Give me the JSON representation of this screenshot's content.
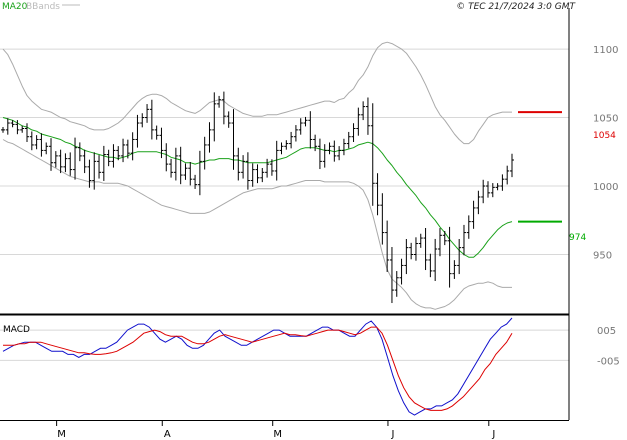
{
  "header": {
    "ma_label": "MA20",
    "bbands_label": "BBands",
    "source": "© TEC 21/7/2024 3:0 GMT"
  },
  "macd_label": "MACD",
  "colors": {
    "ma": "#1aa11a",
    "bands": "#aaaaaa",
    "price": "#000000",
    "resistance": "#dd0000",
    "support": "#00aa00",
    "macd": "#1010cc",
    "signal": "#dd0000",
    "grid": "#d8d8d8"
  },
  "chart_data": [
    {
      "type": "line",
      "title": "",
      "price_axis": {
        "ylim": [
          908,
          1130
        ],
        "ticks": [
          1100,
          1050,
          1000,
          950
        ]
      },
      "x_ticks": [
        "M",
        "A",
        "M",
        "J",
        "J"
      ],
      "close": [
        1041,
        1046,
        1045,
        1041,
        1042,
        1036,
        1030,
        1034,
        1026,
        1029,
        1017,
        1022,
        1014,
        1020,
        1012,
        1028,
        1022,
        1014,
        1004,
        1018,
        1010,
        1023,
        1018,
        1026,
        1022,
        1030,
        1024,
        1034,
        1046,
        1050,
        1056,
        1041,
        1037,
        1026,
        1016,
        1010,
        1022,
        1008,
        1013,
        1005,
        1001,
        1018,
        1030,
        1041,
        1060,
        1063,
        1051,
        1046,
        1022,
        1010,
        1018,
        1004,
        1012,
        1006,
        1010,
        1016,
        1011,
        1026,
        1029,
        1031,
        1036,
        1041,
        1046,
        1048,
        1034,
        1029,
        1018,
        1026,
        1029,
        1022,
        1026,
        1031,
        1036,
        1042,
        1052,
        1058,
        1044,
        1002,
        986,
        966,
        946,
        924,
        933,
        942,
        955,
        950,
        958,
        962,
        946,
        938,
        954,
        964,
        960,
        936,
        942,
        955,
        966,
        974,
        984,
        992,
        1000,
        995,
        999,
        1000,
        1005,
        1011,
        1019
      ],
      "ma20": {
        "name": "MA20",
        "values": [
          1050,
          1049,
          1048,
          1046,
          1044,
          1043,
          1041,
          1040,
          1038,
          1037,
          1036,
          1035,
          1034,
          1032,
          1031,
          1029,
          1028,
          1026,
          1025,
          1024,
          1023,
          1022,
          1021,
          1021,
          1020,
          1021,
          1022,
          1024,
          1025,
          1025,
          1025,
          1025,
          1025,
          1024,
          1023,
          1021,
          1020,
          1019,
          1017,
          1017,
          1016,
          1017,
          1018,
          1019,
          1019,
          1020,
          1020,
          1020,
          1019,
          1019,
          1018,
          1017,
          1017,
          1017,
          1017,
          1017,
          1018,
          1019,
          1020,
          1021,
          1023,
          1025,
          1027,
          1028,
          1028,
          1028,
          1027,
          1026,
          1026,
          1025,
          1026,
          1026,
          1027,
          1028,
          1030,
          1031,
          1032,
          1031,
          1028,
          1024,
          1019,
          1015,
          1010,
          1006,
          1001,
          997,
          993,
          988,
          984,
          979,
          975,
          970,
          966,
          961,
          957,
          953,
          950,
          948,
          948,
          951,
          955,
          960,
          964,
          968,
          971,
          973,
          974
        ]
      },
      "bbands": {
        "name": "BBands",
        "upper": [
          1100,
          1096,
          1089,
          1081,
          1073,
          1066,
          1062,
          1059,
          1056,
          1055,
          1054,
          1052,
          1050,
          1049,
          1047,
          1046,
          1045,
          1044,
          1042,
          1041,
          1041,
          1041,
          1042,
          1044,
          1046,
          1049,
          1053,
          1057,
          1061,
          1064,
          1066,
          1067,
          1067,
          1066,
          1064,
          1061,
          1059,
          1057,
          1055,
          1054,
          1053,
          1055,
          1058,
          1061,
          1062,
          1063,
          1062,
          1059,
          1057,
          1055,
          1053,
          1052,
          1051,
          1051,
          1051,
          1052,
          1052,
          1052,
          1053,
          1054,
          1055,
          1056,
          1057,
          1058,
          1059,
          1060,
          1061,
          1062,
          1062,
          1061,
          1063,
          1064,
          1068,
          1071,
          1077,
          1081,
          1087,
          1095,
          1101,
          1104,
          1105,
          1104,
          1102,
          1100,
          1097,
          1092,
          1087,
          1081,
          1074,
          1066,
          1058,
          1052,
          1048,
          1043,
          1038,
          1034,
          1031,
          1031,
          1034,
          1040,
          1045,
          1050,
          1052,
          1053,
          1054,
          1054,
          1054
        ],
        "lower": [
          1034,
          1032,
          1031,
          1029,
          1027,
          1025,
          1023,
          1021,
          1019,
          1017,
          1015,
          1013,
          1011,
          1009,
          1007,
          1006,
          1005,
          1004,
          1003,
          1003,
          1003,
          1002,
          1002,
          1002,
          1002,
          1001,
          1000,
          998,
          996,
          994,
          992,
          990,
          988,
          986,
          985,
          984,
          983,
          982,
          981,
          980,
          980,
          980,
          980,
          981,
          983,
          985,
          987,
          989,
          991,
          993,
          995,
          996,
          997,
          998,
          998,
          998,
          998,
          999,
          1000,
          1000,
          1001,
          1002,
          1003,
          1004,
          1004,
          1004,
          1004,
          1003,
          1003,
          1003,
          1003,
          1003,
          1003,
          1002,
          1000,
          997,
          990,
          979,
          965,
          951,
          939,
          932,
          929,
          926,
          922,
          917,
          914,
          912,
          911,
          911,
          910,
          911,
          912,
          914,
          917,
          921,
          925,
          927,
          928,
          929,
          929,
          930,
          929,
          927,
          926,
          926,
          926
        ]
      },
      "resistance": {
        "value": 1054,
        "label": "1054"
      },
      "support": {
        "value": 974,
        "label": "974"
      }
    },
    {
      "type": "line",
      "title": "MACD",
      "ylim": [
        -24,
        9
      ],
      "ticks": [
        5,
        -5
      ],
      "tick_labels": [
        "005",
        "-005"
      ],
      "series": [
        {
          "name": "MACD",
          "values": [
            -2,
            -1,
            0,
            0.5,
            1,
            1,
            1,
            0,
            -1,
            -2,
            -2,
            -2,
            -3,
            -3,
            -4,
            -3,
            -3,
            -2,
            -1,
            -1,
            0,
            1,
            3,
            5,
            6,
            7,
            7,
            6,
            4,
            2,
            1,
            2,
            3,
            2,
            0,
            -1,
            -1,
            0,
            2,
            4,
            5,
            3,
            2,
            1,
            0,
            0,
            1,
            2,
            3,
            4,
            5,
            5,
            4,
            3,
            3,
            3,
            3,
            4,
            5,
            6,
            6,
            5,
            5,
            4,
            3,
            3,
            5,
            7,
            8,
            6,
            2,
            -4,
            -10,
            -15,
            -19,
            -22,
            -23,
            -22,
            -21,
            -21,
            -20,
            -20,
            -19,
            -18,
            -16,
            -13,
            -10,
            -7,
            -4,
            -1,
            2,
            4,
            6,
            7,
            9
          ]
        },
        {
          "name": "Signal",
          "values": [
            0,
            0,
            0,
            0.5,
            0.5,
            1,
            1,
            1,
            0.5,
            0,
            -0.5,
            -1,
            -1.5,
            -2,
            -2.5,
            -2.5,
            -2.8,
            -3,
            -3,
            -2.8,
            -2.5,
            -2,
            -1,
            0,
            1,
            2.5,
            4,
            4.5,
            5,
            4.5,
            3.5,
            3,
            3,
            3,
            2,
            1,
            0.5,
            0.5,
            1,
            2,
            3,
            3.5,
            3,
            2.5,
            2,
            1.5,
            1,
            1.5,
            2,
            2.5,
            3,
            3.5,
            4,
            3.5,
            3.5,
            3.2,
            3,
            3.5,
            4,
            4.5,
            5,
            5,
            5,
            4.5,
            4,
            3.5,
            4,
            5,
            6,
            6,
            4,
            0,
            -5,
            -10,
            -14,
            -17,
            -19,
            -20,
            -21,
            -21.5,
            -21.5,
            -21.5,
            -21,
            -20,
            -18.5,
            -17,
            -15,
            -13,
            -11,
            -8,
            -6,
            -3,
            -1,
            1,
            4
          ]
        }
      ]
    }
  ]
}
